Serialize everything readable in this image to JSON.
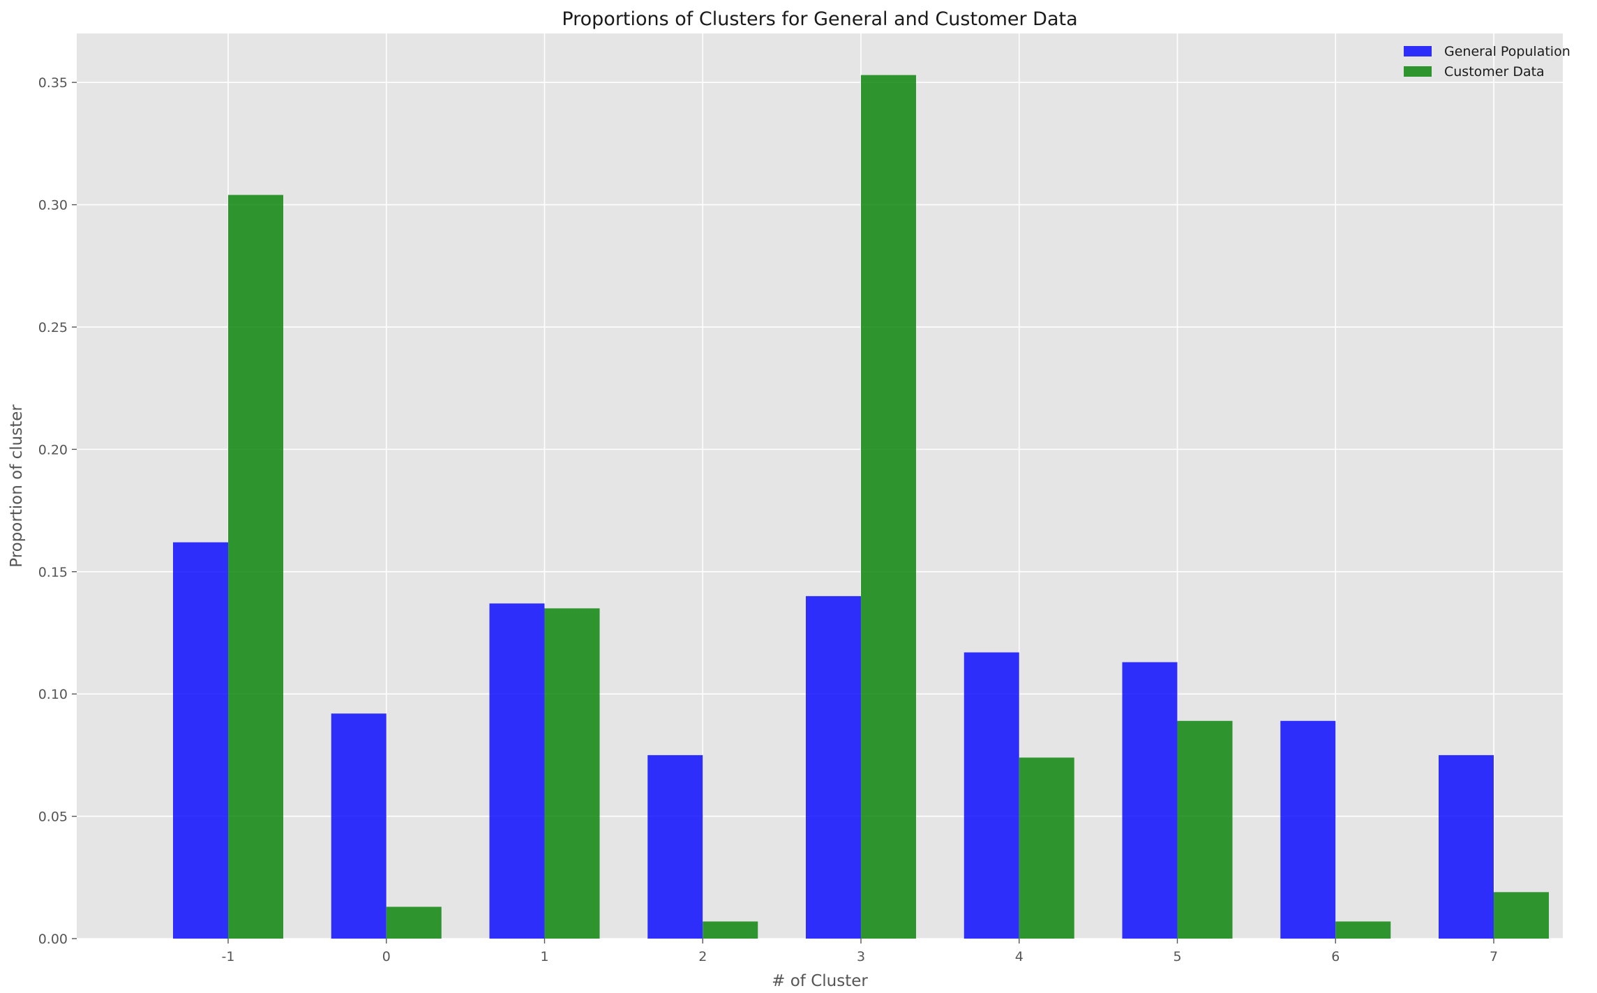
{
  "chart_data": {
    "type": "bar",
    "title": "Proportions of Clusters for General and Customer Data",
    "xlabel": "# of Cluster",
    "ylabel": "Proportion of cluster",
    "categories": [
      "-1",
      "0",
      "1",
      "2",
      "3",
      "4",
      "5",
      "6",
      "7"
    ],
    "series": [
      {
        "name": "General Population",
        "color": "#0000ff",
        "values": [
          0.162,
          0.092,
          0.137,
          0.075,
          0.14,
          0.117,
          0.113,
          0.089,
          0.075
        ]
      },
      {
        "name": "Customer Data",
        "color": "#008000",
        "values": [
          0.304,
          0.013,
          0.135,
          0.007,
          0.353,
          0.074,
          0.089,
          0.007,
          0.019
        ]
      }
    ],
    "ylim": [
      0,
      0.37
    ],
    "yticks": [
      "0.00",
      "0.05",
      "0.10",
      "0.15",
      "0.20",
      "0.25",
      "0.30",
      "0.35"
    ],
    "grid": true,
    "legend_position": "top-right",
    "background": "#e5e5e5"
  }
}
